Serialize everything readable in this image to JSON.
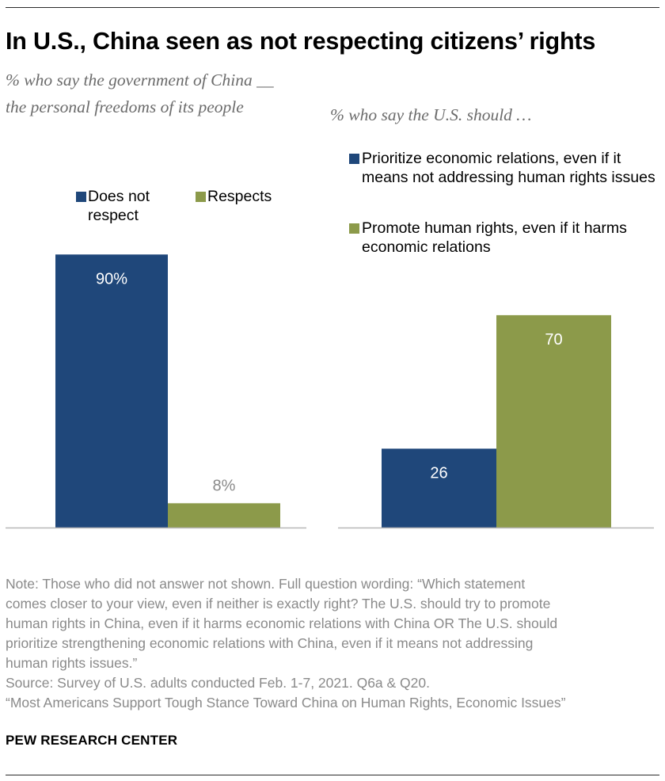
{
  "title": "In U.S., China seen as not respecting citizens’ rights",
  "left_chart": {
    "subtitle": "% who say the government of China __ the personal freedoms of its people",
    "legend": [
      "Does not respect",
      "Respects"
    ]
  },
  "right_chart": {
    "subtitle": "% who say the U.S. should …",
    "legend": [
      "Prioritize economic relations, even if it means not addressing human rights issues",
      "Promote human rights, even if it harms economic relations"
    ]
  },
  "colors": {
    "blue": "#1f477a",
    "green": "#8c9a4a",
    "axis": "#b8b8b8",
    "label_white": "#ffffff",
    "label_gray": "#8a8a8a"
  },
  "chart_data": [
    {
      "type": "bar",
      "title": "% who say the government of China __ the personal freedoms of its people",
      "categories": [
        "Does not respect",
        "Respects"
      ],
      "values": [
        90,
        8
      ],
      "value_labels": [
        "90%",
        "8%"
      ],
      "ylim": [
        0,
        100
      ],
      "legend_position": "top"
    },
    {
      "type": "bar",
      "title": "% who say the U.S. should …",
      "categories": [
        "Prioritize economic relations, even if it means not addressing human rights issues",
        "Promote human rights, even if it harms economic relations"
      ],
      "values": [
        26,
        70
      ],
      "value_labels": [
        "26",
        "70"
      ],
      "ylim": [
        0,
        100
      ],
      "legend_position": "top"
    }
  ],
  "note": {
    "line1": "Note: Those who did not answer not shown.  Full question wording: “Which statement",
    "line2": "comes closer to your view, even if neither is exactly right? The U.S. should try to promote",
    "line3": "human rights in China, even if it harms economic relations with China OR The U.S. should",
    "line4": "prioritize strengthening economic relations with China, even if it means not addressing",
    "line5": "human rights issues.”",
    "source": "Source: Survey of U.S. adults conducted Feb. 1-7, 2021. Q6a & Q20.",
    "report": "“Most Americans Support Tough Stance Toward China on Human Rights, Economic Issues”"
  },
  "brand": "PEW RESEARCH CENTER"
}
